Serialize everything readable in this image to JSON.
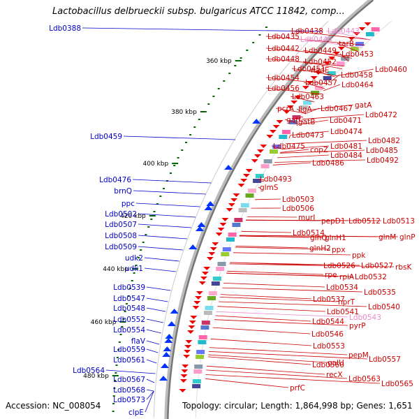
{
  "title": "Lactobacillus delbrueckii subsp. bulgaricus ATCC 11842, comp...",
  "footer": {
    "accession": "Accession: NC_008054",
    "summary": "Topology: circular; Length: 1,864,998 bp; Genes: 1,651"
  },
  "colors": {
    "left_label": "#0000cc",
    "right_label": "#cc0000",
    "faint_label": "#ee88cc",
    "ticks": "#006600",
    "backbone": "#999999"
  },
  "kbp_labels": [
    "360 kbp",
    "380 kbp",
    "400 kbp",
    "420 kbp",
    "440 kbp",
    "460 kbp",
    "480 kbp"
  ],
  "left_labels": [
    "Ldb0388",
    "Ldb0459",
    "Ldb0476",
    "brnQ",
    "ppc",
    "Ldb0502",
    "Ldb0507",
    "Ldb0508",
    "Ldb0509",
    "udk2",
    "udk1",
    "Ldb0539",
    "Ldb0547",
    "Ldb0548",
    "Ldb0552",
    "Ldb0554",
    "flaV",
    "Ldb0559",
    "Ldb0561",
    "Ldb0564",
    "Ldb0567",
    "Ldb0568",
    "Ldb0573",
    "clpE"
  ],
  "right_labels": [
    "Ldb0435",
    "Ldb0438",
    "Ldb0443",
    "Ldb0444",
    "tarB",
    "Ldb0442",
    "Ldb0449",
    "Ldb0453",
    "Ldb0448",
    "Ldb0452",
    "Ldb0451",
    "nadE",
    "Ldb0460",
    "Ldb0454",
    "Ldb0458",
    "Ldb0457",
    "Ldb0464",
    "Ldb0456",
    "Ldb0463",
    "gatA",
    "pcrA",
    "ligA",
    "Ldb0467",
    "Ldb0472",
    "gatC",
    "gatB",
    "Ldb0471",
    "Ldb0474",
    "Ldb0473",
    "Ldb0482",
    "Ldb0475",
    "copZ",
    "Ldb0481",
    "Ldb0485",
    "Ldb0484",
    "Ldb0492",
    "Ldb0486",
    "Ldb0493",
    "glmS",
    "Ldb0503",
    "Ldb0506",
    "murI",
    "pepD1",
    "Ldb0512",
    "Ldb0513",
    "Ldb0514",
    "glnQ",
    "glnH1",
    "glnM",
    "glnP",
    "glnH2",
    "ppx",
    "ppk",
    "Ldb0526",
    "Ldb0527",
    "rbsK",
    "rpe",
    "rpiA",
    "Ldb0532",
    "Ldb0534",
    "Ldb0535",
    "Ldb0537",
    "hprT",
    "Ldb0540",
    "Ldb0541",
    "Ldb0544",
    "Ldb0543",
    "pyrP",
    "Ldb0546",
    "Ldb0553",
    "pepM",
    "Ldb0557",
    "Ldb0560",
    "galU",
    "recX",
    "Ldb0563",
    "Ldb0565",
    "prfC"
  ]
}
